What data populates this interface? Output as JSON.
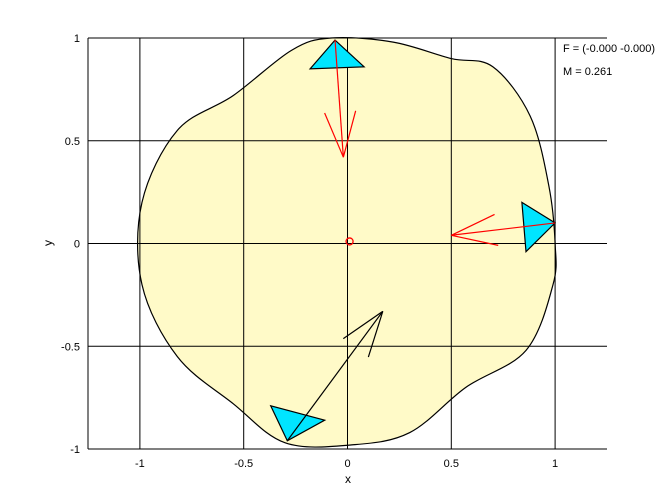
{
  "chart_data": {
    "type": "diagram",
    "xlabel": "x",
    "ylabel": "y",
    "xlim": [
      -1.25,
      1.25
    ],
    "ylim": [
      -1,
      1
    ],
    "xticks": [
      -1,
      -0.5,
      0,
      0.5,
      1
    ],
    "xtick_labels": [
      "-1",
      "-0.5",
      "0",
      "0.5",
      "1"
    ],
    "yticks": [
      -1,
      -0.5,
      0,
      0.5,
      1
    ],
    "ytick_labels": [
      "-1",
      "-0.5",
      "0",
      "0.5",
      "1"
    ],
    "grid": true,
    "annotations": [
      "F = (-0.000 -0.000)",
      "M = 0.261"
    ],
    "region": {
      "fill": "#fffac8",
      "outline": [
        [
          1.0,
          0.0
        ],
        [
          0.97,
          0.28
        ],
        [
          0.88,
          0.62
        ],
        [
          0.7,
          0.86
        ],
        [
          0.5,
          0.9
        ],
        [
          0.22,
          0.98
        ],
        [
          -0.08,
          1.0
        ],
        [
          -0.27,
          0.94
        ],
        [
          -0.55,
          0.72
        ],
        [
          -0.82,
          0.55
        ],
        [
          -0.99,
          0.2
        ],
        [
          -0.99,
          -0.2
        ],
        [
          -0.82,
          -0.55
        ],
        [
          -0.55,
          -0.78
        ],
        [
          -0.3,
          -0.97
        ],
        [
          0.02,
          -0.98
        ],
        [
          0.3,
          -0.92
        ],
        [
          0.57,
          -0.7
        ],
        [
          0.86,
          -0.52
        ],
        [
          0.99,
          -0.2
        ]
      ]
    },
    "center_marker": {
      "x": 0.01,
      "y": 0.01,
      "color": "#ff0000"
    },
    "triangles": [
      {
        "points": [
          [
            -0.06,
            0.99
          ],
          [
            -0.18,
            0.85
          ],
          [
            0.08,
            0.86
          ]
        ],
        "fill": "#00e5ff"
      },
      {
        "points": [
          [
            1.0,
            0.1
          ],
          [
            0.84,
            0.2
          ],
          [
            0.86,
            -0.04
          ]
        ],
        "fill": "#00e5ff"
      },
      {
        "points": [
          [
            -0.29,
            -0.96
          ],
          [
            -0.37,
            -0.79
          ],
          [
            -0.11,
            -0.86
          ]
        ],
        "fill": "#00e5ff"
      }
    ],
    "force_arrows": [
      {
        "from": [
          -0.06,
          0.99
        ],
        "to": [
          -0.02,
          0.42
        ],
        "color": "#ff0000"
      },
      {
        "from": [
          1.0,
          0.1
        ],
        "to": [
          0.5,
          0.04
        ],
        "color": "#ff0000"
      }
    ],
    "moment_arrow": {
      "from": [
        -0.29,
        -0.96
      ],
      "to": [
        0.17,
        -0.33
      ],
      "color": "#000000"
    }
  }
}
